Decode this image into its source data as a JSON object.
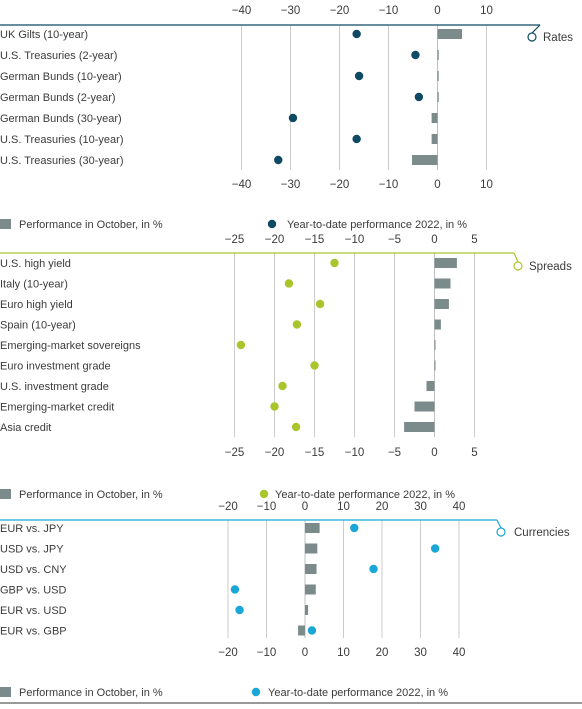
{
  "colors": {
    "bar": "#7b8b8b",
    "rates": "#0e4a63",
    "spreads": "#a8c62b",
    "currencies": "#1aa6d6",
    "grid": "#bfbfbf",
    "text": "#3b3b3b"
  },
  "chart_data": [
    {
      "type": "bar",
      "panel": "Rates",
      "categories": [
        "UK Gilts (10-year)",
        "U.S. Treasuries (2-year)",
        "German Bunds (10-year)",
        "German Bunds (2-year)",
        "German Bunds (30-year)",
        "U.S. Treasuries (10-year)",
        "U.S. Treasuries (30-year)"
      ],
      "xlim": [
        -40,
        10
      ],
      "ticks": [
        -40,
        -30,
        -20,
        -10,
        0,
        10
      ],
      "tick_labels": [
        "−40",
        "−30",
        "−20",
        "−10",
        "0",
        "10"
      ],
      "series": [
        {
          "name": "Performance in October, in %",
          "kind": "bar",
          "values": [
            5,
            0,
            0,
            0,
            -1.2,
            -1.2,
            -5.2
          ]
        },
        {
          "name": "Year-to-date performance 2022, in %",
          "kind": "dot",
          "values": [
            -16.5,
            -4.5,
            -16,
            -3.8,
            -29.5,
            -16.5,
            -32.5
          ]
        }
      ],
      "legend": [
        "Performance in October, in %",
        "Year-to-date performance 2022, in %"
      ]
    },
    {
      "type": "bar",
      "panel": "Spreads",
      "categories": [
        "U.S. high yield",
        "Italy (10-year)",
        "Euro high yield",
        "Spain (10-year)",
        "Emerging-market sovereigns",
        "Euro investment grade",
        "U.S. investment grade",
        "Emerging-market credit",
        "Asia credit"
      ],
      "xlim": [
        -25,
        5
      ],
      "ticks": [
        -25,
        -20,
        -15,
        -10,
        -5,
        0,
        5
      ],
      "tick_labels": [
        "−25",
        "−20",
        "−15",
        "−10",
        "−5",
        "0",
        "5"
      ],
      "series": [
        {
          "name": "Performance in October, in %",
          "kind": "bar",
          "values": [
            2.8,
            2.0,
            1.8,
            0.8,
            0.1,
            0.1,
            -1.0,
            -2.5,
            -3.8
          ]
        },
        {
          "name": "Year-to-date performance 2022, in %",
          "kind": "dot",
          "values": [
            -12.5,
            -18.2,
            -14.3,
            -17.2,
            -24.2,
            -15,
            -19,
            -20,
            -17.3
          ]
        }
      ],
      "legend": [
        "Performance in October, in %",
        "Year-to-date performance 2022, in %"
      ]
    },
    {
      "type": "bar",
      "panel": "Currencies",
      "categories": [
        "EUR vs. JPY",
        "USD vs. JPY",
        "USD vs. CNY",
        "GBP vs. USD",
        "EUR vs. USD",
        "EUR vs. GBP"
      ],
      "xlim": [
        -20,
        40
      ],
      "ticks": [
        -20,
        -10,
        0,
        10,
        20,
        30,
        40
      ],
      "tick_labels": [
        "−20",
        "−10",
        "0",
        "10",
        "20",
        "30",
        "40"
      ],
      "series": [
        {
          "name": "Performance in October, in %",
          "kind": "bar",
          "values": [
            3.8,
            3.2,
            3.0,
            2.8,
            0.8,
            -1.8
          ]
        },
        {
          "name": "Year-to-date performance 2022, in %",
          "kind": "dot",
          "values": [
            12.8,
            33.8,
            17.8,
            -18.2,
            -17,
            1.8
          ]
        }
      ],
      "legend": [
        "Performance in October, in %",
        "Year-to-date performance 2022, in %"
      ]
    }
  ]
}
